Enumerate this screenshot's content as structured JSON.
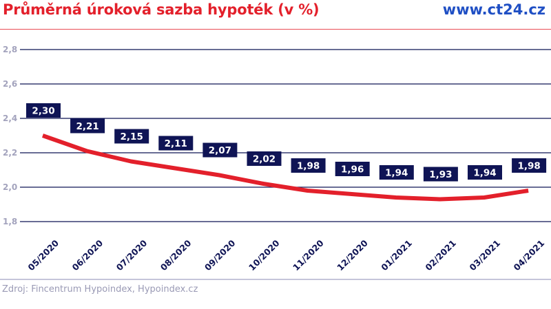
{
  "header": {
    "title": "Průměrná úroková sazba hypoték (v %)",
    "brand": "www.ct24.cz"
  },
  "footer": {
    "source": "Zdroj: Fincentrum Hypoindex, Hypoindex.cz"
  },
  "colors": {
    "title": "#e3202b",
    "brand": "#1f4fc4",
    "line": "#e3202b",
    "label_bg": "#0f1455",
    "gridline": "#0f1455",
    "ytick": "#a3a3bd",
    "source": "#9a9ab5"
  },
  "chart_data": {
    "type": "line",
    "title": "Průměrná úroková sazba hypoték (v %)",
    "xlabel": "",
    "ylabel": "",
    "categories": [
      "05/2020",
      "06/2020",
      "07/2020",
      "08/2020",
      "09/2020",
      "10/2020",
      "11/2020",
      "12/2020",
      "01/2021",
      "02/2021",
      "03/2021",
      "04/2021"
    ],
    "series": [
      {
        "name": "Průměrná úroková sazba hypoték",
        "values": [
          2.3,
          2.21,
          2.15,
          2.11,
          2.07,
          2.02,
          1.98,
          1.96,
          1.94,
          1.93,
          1.94,
          1.98
        ],
        "labels": [
          "2,30",
          "2,21",
          "2,15",
          "2,11",
          "2,07",
          "2,02",
          "1,98",
          "1,96",
          "1,94",
          "1,93",
          "1,94",
          "1,98"
        ]
      }
    ],
    "ylim": [
      1.8,
      2.8
    ],
    "yticks": [
      1.8,
      2.0,
      2.2,
      2.4,
      2.6,
      2.8
    ],
    "ytick_labels": [
      "1,8",
      "2,0",
      "2,2",
      "2,4",
      "2,6",
      "2,8"
    ],
    "grid": true,
    "legend": "none",
    "source": "Zdroj: Fincentrum Hypoindex, Hypoindex.cz"
  }
}
